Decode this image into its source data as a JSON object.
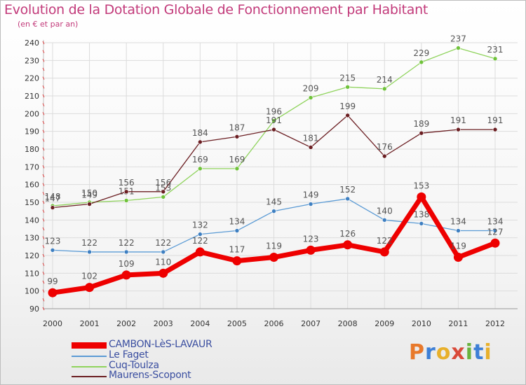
{
  "header": {
    "title": "Evolution de la Dotation Globale de Fonctionnement par Habitant",
    "subtitle": "(en € et par an)"
  },
  "logo": {
    "text": "Proxiti",
    "colors": [
      "#e8792b",
      "#3d7fd6",
      "#e8b02b",
      "#d94a3a",
      "#69b23d",
      "#3d7fd6",
      "#e8b02b"
    ]
  },
  "chart_data": {
    "type": "line",
    "title": "Evolution de la Dotation Globale de Fonctionnement par Habitant",
    "subtitle": "(en € et par an)",
    "xlabel": "",
    "ylabel": "",
    "ylim": [
      90,
      240
    ],
    "yticks": [
      90,
      100,
      110,
      120,
      130,
      140,
      150,
      160,
      170,
      180,
      190,
      200,
      210,
      220,
      230,
      240
    ],
    "grid": true,
    "x": [
      "2000",
      "2001",
      "2002",
      "2003",
      "2004",
      "2005",
      "2006",
      "2007",
      "2008",
      "2009",
      "2010",
      "2011",
      "2012"
    ],
    "series": [
      {
        "name": "Cuq-Toulza",
        "color": "#8fd35c",
        "marker": "#6fc23a",
        "width": 1.3,
        "values": [
          148,
          150,
          151,
          153,
          169,
          169,
          196,
          209,
          215,
          214,
          229,
          237,
          231
        ],
        "labels": [
          "148",
          "150",
          "151",
          "153",
          "169",
          "169",
          "196",
          "209",
          "215",
          "214",
          "229",
          "237",
          "231"
        ]
      },
      {
        "name": "Maurens-Scopont",
        "color": "#6b1e22",
        "marker": "#6b1e22",
        "width": 1.3,
        "values": [
          147,
          149,
          156,
          156,
          184,
          187,
          191,
          181,
          199,
          176,
          189,
          191,
          191
        ],
        "labels": [
          "147",
          "149",
          "156",
          "156",
          "184",
          "187",
          "191",
          "181",
          "199",
          "176",
          "189",
          "191",
          "191"
        ]
      },
      {
        "name": "Le Faget",
        "color": "#5b9bd5",
        "marker": "#3e7fc1",
        "width": 1.3,
        "values": [
          123,
          122,
          122,
          122,
          132,
          134,
          145,
          149,
          152,
          140,
          138,
          134,
          134
        ],
        "labels": [
          "123",
          "122",
          "122",
          "122",
          "132",
          "134",
          "145",
          "149",
          "152",
          "140",
          "138",
          "134",
          "134"
        ]
      },
      {
        "name": "CAMBON-LèS-LAVAUR",
        "color": "#ee0000",
        "marker": "#ee0000",
        "width": 7,
        "values": [
          99,
          102,
          109,
          110,
          122,
          117,
          119,
          123,
          126,
          122,
          153,
          119,
          127
        ],
        "labels": [
          "99",
          "102",
          "109",
          "110",
          "122",
          "117",
          "119",
          "123",
          "126",
          "122",
          "153",
          "119",
          "127"
        ]
      }
    ],
    "legend": [
      {
        "name": "CAMBON-LèS-LAVAUR",
        "color": "#ee0000",
        "thick": true
      },
      {
        "name": "Le Faget",
        "color": "#5b9bd5",
        "thick": false
      },
      {
        "name": "Cuq-Toulza",
        "color": "#8fd35c",
        "thick": false
      },
      {
        "name": "Maurens-Scopont",
        "color": "#6b1e22",
        "thick": false
      }
    ]
  }
}
